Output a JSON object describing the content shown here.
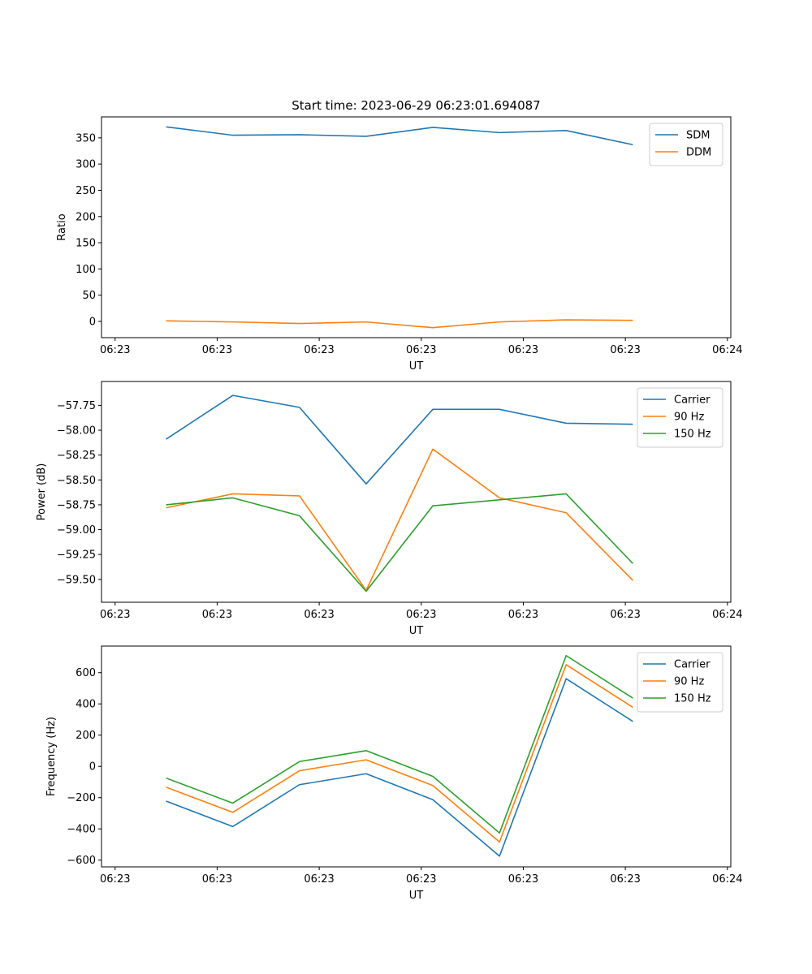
{
  "chart_data": [
    {
      "type": "line",
      "title": "Start time: 2023-06-29 06:23:01.694087",
      "xlabel": "UT",
      "ylabel": "Ratio",
      "xlim": [
        -0.2,
        9.05
      ],
      "x_ticks": [
        0,
        1.5,
        3,
        4.5,
        6,
        7.5,
        9
      ],
      "x_tick_labels": [
        "06:23",
        "06:23",
        "06:23",
        "06:23",
        "06:23",
        "06:23",
        "06:24"
      ],
      "ylim": [
        -31,
        390
      ],
      "y_ticks": [
        0,
        50,
        100,
        150,
        200,
        250,
        300,
        350
      ],
      "y_tick_labels": [
        "0",
        "50",
        "100",
        "150",
        "200",
        "250",
        "300",
        "350"
      ],
      "grid": false,
      "legend": "top-right",
      "x": [
        0.75,
        1.73,
        2.71,
        3.69,
        4.67,
        5.65,
        6.63,
        7.61
      ],
      "series": [
        {
          "name": "SDM",
          "color": "#1f77b4",
          "values": [
            371,
            355,
            356,
            353,
            370,
            360,
            364,
            337
          ]
        },
        {
          "name": "DDM",
          "color": "#ff7f0e",
          "values": [
            1,
            -1,
            -4,
            -1,
            -12,
            -1,
            3,
            2
          ]
        }
      ]
    },
    {
      "type": "line",
      "title": "",
      "xlabel": "UT",
      "ylabel": "Power (dB)",
      "xlim": [
        -0.2,
        9.05
      ],
      "x_ticks": [
        0,
        1.5,
        3,
        4.5,
        6,
        7.5,
        9
      ],
      "x_tick_labels": [
        "06:23",
        "06:23",
        "06:23",
        "06:23",
        "06:23",
        "06:23",
        "06:24"
      ],
      "ylim": [
        -59.73,
        -57.51
      ],
      "y_ticks": [
        -59.5,
        -59.25,
        -59.0,
        -58.75,
        -58.5,
        -58.25,
        -58.0,
        -57.75
      ],
      "y_tick_labels": [
        "−59.50",
        "−59.25",
        "−59.00",
        "−58.75",
        "−58.50",
        "−58.25",
        "−58.00",
        "−57.75"
      ],
      "grid": false,
      "legend": "top-right",
      "x": [
        0.75,
        1.73,
        2.71,
        3.69,
        4.67,
        5.65,
        6.63,
        7.61
      ],
      "series": [
        {
          "name": "Carrier",
          "color": "#1f77b4",
          "values": [
            -58.09,
            -57.65,
            -57.77,
            -58.54,
            -57.79,
            -57.79,
            -57.93,
            -57.94
          ]
        },
        {
          "name": "90 Hz",
          "color": "#ff7f0e",
          "values": [
            -58.78,
            -58.64,
            -58.66,
            -59.61,
            -58.19,
            -58.68,
            -58.83,
            -59.51
          ]
        },
        {
          "name": "150 Hz",
          "color": "#2ca02c",
          "values": [
            -58.75,
            -58.68,
            -58.86,
            -59.62,
            -58.76,
            -58.7,
            -58.64,
            -59.34
          ]
        }
      ]
    },
    {
      "type": "line",
      "title": "",
      "xlabel": "UT",
      "ylabel": "Frequency (Hz)",
      "xlim": [
        -0.2,
        9.05
      ],
      "x_ticks": [
        0,
        1.5,
        3,
        4.5,
        6,
        7.5,
        9
      ],
      "x_tick_labels": [
        "06:23",
        "06:23",
        "06:23",
        "06:23",
        "06:23",
        "06:23",
        "06:24"
      ],
      "ylim": [
        -643,
        770
      ],
      "y_ticks": [
        -600,
        -400,
        -200,
        0,
        200,
        400,
        600
      ],
      "y_tick_labels": [
        "−600",
        "−400",
        "−200",
        "0",
        "200",
        "400",
        "600"
      ],
      "grid": false,
      "legend": "top-right",
      "x": [
        0.75,
        1.73,
        2.71,
        3.69,
        4.67,
        5.65,
        6.63,
        7.61
      ],
      "series": [
        {
          "name": "Carrier",
          "color": "#1f77b4",
          "values": [
            -222,
            -385,
            -117,
            -47,
            -213,
            -574,
            561,
            288
          ]
        },
        {
          "name": "90 Hz",
          "color": "#ff7f0e",
          "values": [
            -133,
            -294,
            -28,
            42,
            -122,
            -484,
            651,
            378
          ]
        },
        {
          "name": "150 Hz",
          "color": "#2ca02c",
          "values": [
            -75,
            -235,
            31,
            101,
            -64,
            -426,
            709,
            437
          ]
        }
      ]
    }
  ]
}
